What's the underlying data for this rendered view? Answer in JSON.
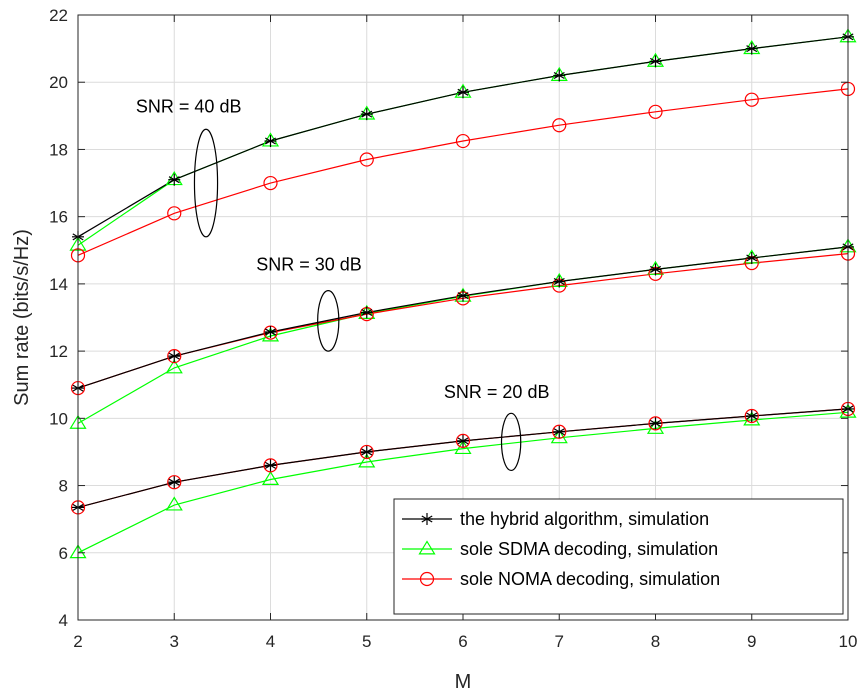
{
  "chart_data": {
    "type": "line",
    "xlabel": "M",
    "ylabel": "Sum rate (bits/s/Hz)",
    "xlim": [
      2,
      10
    ],
    "ylim": [
      4,
      22
    ],
    "x": [
      2,
      3,
      4,
      5,
      6,
      7,
      8,
      9,
      10
    ],
    "xticks": [
      2,
      3,
      4,
      5,
      6,
      7,
      8,
      9,
      10
    ],
    "yticks": [
      4,
      6,
      8,
      10,
      12,
      14,
      16,
      18,
      20,
      22
    ],
    "grid": true,
    "legend_position": "bottom-right",
    "series": [
      {
        "name": "the hybrid algorithm, simulation",
        "color": "#000000",
        "marker": "asterisk",
        "snr": "40 dB",
        "values": [
          15.4,
          17.1,
          18.25,
          19.05,
          19.7,
          20.2,
          20.62,
          21.0,
          21.35
        ]
      },
      {
        "name": "sole SDMA decoding, simulation",
        "color": "#00ff00",
        "marker": "triangle",
        "snr": "40 dB",
        "values": [
          15.15,
          17.1,
          18.25,
          19.05,
          19.7,
          20.2,
          20.62,
          21.0,
          21.35
        ]
      },
      {
        "name": "sole NOMA decoding, simulation",
        "color": "#ff0000",
        "marker": "circle",
        "snr": "40 dB",
        "values": [
          14.85,
          16.1,
          17.0,
          17.7,
          18.25,
          18.72,
          19.12,
          19.48,
          19.8
        ]
      },
      {
        "name": "the hybrid algorithm, simulation",
        "color": "#000000",
        "marker": "asterisk",
        "snr": "30 dB",
        "values": [
          10.9,
          11.85,
          12.57,
          13.15,
          13.65,
          14.07,
          14.43,
          14.77,
          15.1
        ]
      },
      {
        "name": "sole SDMA decoding, simulation",
        "color": "#00ff00",
        "marker": "triangle",
        "snr": "30 dB",
        "values": [
          9.85,
          11.5,
          12.45,
          13.12,
          13.63,
          14.07,
          14.43,
          14.77,
          15.1
        ]
      },
      {
        "name": "sole NOMA decoding, simulation",
        "color": "#ff0000",
        "marker": "circle",
        "snr": "30 dB",
        "values": [
          10.9,
          11.85,
          12.55,
          13.1,
          13.57,
          13.95,
          14.3,
          14.62,
          14.9
        ]
      },
      {
        "name": "the hybrid algorithm, simulation",
        "color": "#000000",
        "marker": "asterisk",
        "snr": "20 dB",
        "values": [
          7.35,
          8.1,
          8.6,
          9.0,
          9.33,
          9.6,
          9.85,
          10.07,
          10.28
        ]
      },
      {
        "name": "sole SDMA decoding, simulation",
        "color": "#00ff00",
        "marker": "triangle",
        "snr": "20 dB",
        "values": [
          6.0,
          7.42,
          8.18,
          8.7,
          9.1,
          9.42,
          9.7,
          9.95,
          10.18
        ]
      },
      {
        "name": "sole NOMA decoding, simulation",
        "color": "#ff0000",
        "marker": "circle",
        "snr": "20 dB",
        "values": [
          7.35,
          8.1,
          8.6,
          9.0,
          9.33,
          9.6,
          9.85,
          10.07,
          10.28
        ]
      }
    ],
    "legend": [
      {
        "label": "the hybrid algorithm, simulation",
        "color": "#000000",
        "marker": "asterisk"
      },
      {
        "label": "sole SDMA decoding, simulation",
        "color": "#00ff00",
        "marker": "triangle"
      },
      {
        "label": "sole NOMA decoding, simulation",
        "color": "#ff0000",
        "marker": "circle"
      }
    ],
    "annotations": [
      {
        "text": "SNR = 40 dB",
        "x": 3.15,
        "y": 19.1,
        "ellipse": {
          "cx": 3.33,
          "cy": 17.0,
          "rx": 0.12,
          "ry": 1.6
        }
      },
      {
        "text": "SNR = 30 dB",
        "x": 4.4,
        "y": 14.4,
        "ellipse": {
          "cx": 4.6,
          "cy": 12.9,
          "rx": 0.11,
          "ry": 0.9
        }
      },
      {
        "text": "SNR = 20 dB",
        "x": 6.35,
        "y": 10.6,
        "ellipse": {
          "cx": 6.5,
          "cy": 9.3,
          "rx": 0.1,
          "ry": 0.85
        }
      }
    ]
  }
}
